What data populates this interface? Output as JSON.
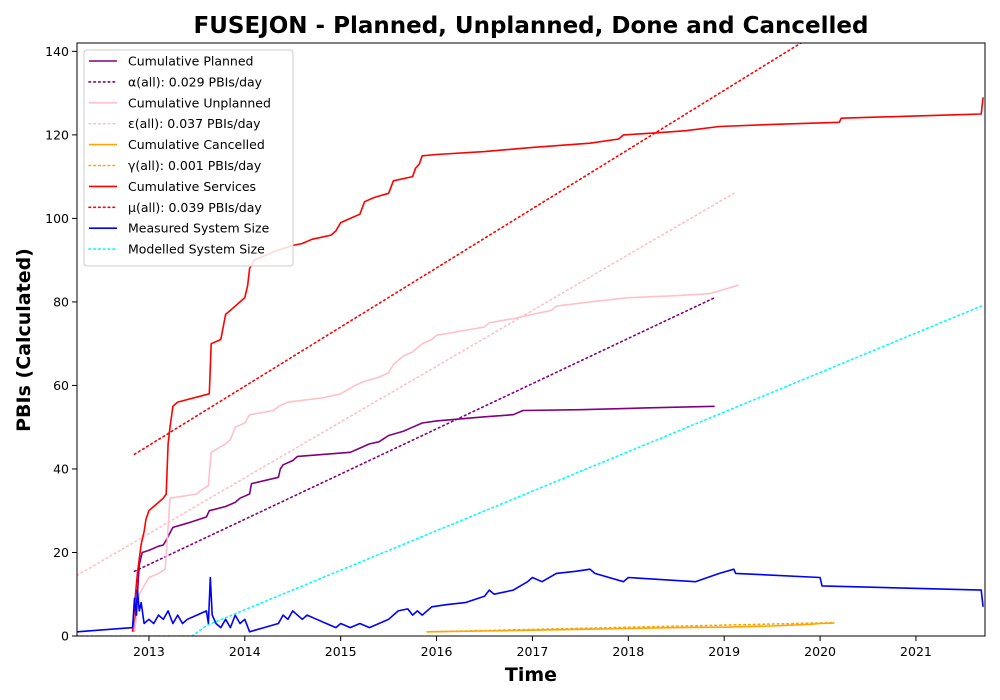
{
  "chart_data": {
    "type": "line",
    "title": "FUSEJON - Planned, Unplanned, Done  and Cancelled",
    "xlabel": "Time",
    "ylabel": "PBIs (Calculated)",
    "xlim": [
      2012.25,
      2021.72
    ],
    "ylim": [
      0,
      142
    ],
    "x_ticks": [
      2013,
      2014,
      2015,
      2016,
      2017,
      2018,
      2019,
      2020,
      2021
    ],
    "x_tick_labels": [
      "2013",
      "2014",
      "2015",
      "2016",
      "2017",
      "2018",
      "2019",
      "2020",
      "2021"
    ],
    "y_ticks": [
      0,
      20,
      40,
      60,
      80,
      100,
      120,
      140
    ],
    "y_tick_labels": [
      "0",
      "20",
      "40",
      "60",
      "80",
      "100",
      "120",
      "140"
    ],
    "legend_position": "top-left",
    "grid": false,
    "series": [
      {
        "name": "Cumulative Planned",
        "color": "#800080",
        "style": "solid",
        "points": [
          [
            2012.85,
            1
          ],
          [
            2012.88,
            10
          ],
          [
            2012.9,
            17
          ],
          [
            2012.93,
            20
          ],
          [
            2013.0,
            20.5
          ],
          [
            2013.1,
            21.5
          ],
          [
            2013.15,
            21.8
          ],
          [
            2013.18,
            23
          ],
          [
            2013.25,
            26
          ],
          [
            2013.4,
            27
          ],
          [
            2013.6,
            28.5
          ],
          [
            2013.63,
            30
          ],
          [
            2013.8,
            31
          ],
          [
            2013.9,
            32
          ],
          [
            2013.95,
            33
          ],
          [
            2014.05,
            34
          ],
          [
            2014.07,
            36.5
          ],
          [
            2014.35,
            38
          ],
          [
            2014.37,
            40
          ],
          [
            2014.4,
            41
          ],
          [
            2014.5,
            42
          ],
          [
            2014.55,
            43
          ],
          [
            2015.1,
            44
          ],
          [
            2015.2,
            45
          ],
          [
            2015.3,
            46
          ],
          [
            2015.4,
            46.5
          ],
          [
            2015.5,
            48
          ],
          [
            2015.65,
            49
          ],
          [
            2015.75,
            50
          ],
          [
            2015.85,
            51
          ],
          [
            2016.0,
            51.5
          ],
          [
            2016.5,
            52.5
          ],
          [
            2016.8,
            53
          ],
          [
            2016.9,
            54
          ],
          [
            2017.5,
            54.2
          ],
          [
            2018.0,
            54.5
          ],
          [
            2018.5,
            54.8
          ],
          [
            2018.9,
            55
          ]
        ]
      },
      {
        "name": "α(all): 0.029 PBIs/day",
        "color": "#800080",
        "style": "dotted",
        "points": [
          [
            2012.85,
            15.5
          ],
          [
            2018.9,
            81
          ]
        ]
      },
      {
        "name": "Cumulative Unplanned",
        "color": "#ffc0cb",
        "style": "solid",
        "points": [
          [
            2012.85,
            1
          ],
          [
            2012.9,
            10
          ],
          [
            2013.0,
            14
          ],
          [
            2013.1,
            15
          ],
          [
            2013.17,
            16
          ],
          [
            2013.2,
            26
          ],
          [
            2013.22,
            33
          ],
          [
            2013.5,
            34
          ],
          [
            2013.55,
            35
          ],
          [
            2013.62,
            36
          ],
          [
            2013.65,
            44
          ],
          [
            2013.8,
            46
          ],
          [
            2013.85,
            47
          ],
          [
            2013.9,
            50
          ],
          [
            2014.0,
            51
          ],
          [
            2014.05,
            53
          ],
          [
            2014.3,
            54
          ],
          [
            2014.35,
            55
          ],
          [
            2014.45,
            56
          ],
          [
            2014.8,
            57
          ],
          [
            2015.0,
            58
          ],
          [
            2015.15,
            60
          ],
          [
            2015.25,
            61
          ],
          [
            2015.4,
            62
          ],
          [
            2015.5,
            63
          ],
          [
            2015.55,
            65
          ],
          [
            2015.65,
            67
          ],
          [
            2015.75,
            68
          ],
          [
            2015.85,
            70
          ],
          [
            2015.95,
            71
          ],
          [
            2016.0,
            72
          ],
          [
            2016.5,
            74
          ],
          [
            2016.55,
            75
          ],
          [
            2016.8,
            76
          ],
          [
            2017.0,
            77
          ],
          [
            2017.2,
            78
          ],
          [
            2017.25,
            79
          ],
          [
            2017.6,
            80
          ],
          [
            2018.0,
            81
          ],
          [
            2018.5,
            81.5
          ],
          [
            2018.85,
            82
          ],
          [
            2019.0,
            83
          ],
          [
            2019.15,
            84
          ]
        ]
      },
      {
        "name": "ε(all): 0.037 PBIs/day",
        "color": "#ffc0cb",
        "style": "dotted",
        "points": [
          [
            2012.25,
            14.5
          ],
          [
            2019.1,
            106
          ]
        ]
      },
      {
        "name": "Cumulative Cancelled",
        "color": "#ffa500",
        "style": "solid",
        "points": [
          [
            2015.9,
            1
          ],
          [
            2016.5,
            1.2
          ],
          [
            2017.0,
            1.4
          ],
          [
            2017.5,
            1.6
          ],
          [
            2018.0,
            1.8
          ],
          [
            2018.5,
            2.0
          ],
          [
            2019.0,
            2.1
          ],
          [
            2019.5,
            2.4
          ],
          [
            2019.9,
            2.8
          ],
          [
            2020.0,
            3.0
          ],
          [
            2020.15,
            3.1
          ]
        ]
      },
      {
        "name": "γ(all): 0.001 PBIs/day",
        "color": "#ffa500",
        "style": "dotted",
        "points": [
          [
            2015.9,
            1.0
          ],
          [
            2020.15,
            3.2
          ]
        ]
      },
      {
        "name": "Cumulative Services",
        "color": "#ff0000",
        "style": "solid",
        "points": [
          [
            2012.83,
            1
          ],
          [
            2012.86,
            10
          ],
          [
            2012.88,
            15
          ],
          [
            2012.92,
            22
          ],
          [
            2012.95,
            25
          ],
          [
            2012.97,
            28
          ],
          [
            2013.0,
            30
          ],
          [
            2013.05,
            31
          ],
          [
            2013.1,
            32
          ],
          [
            2013.15,
            33
          ],
          [
            2013.18,
            34
          ],
          [
            2013.2,
            46
          ],
          [
            2013.22,
            50
          ],
          [
            2013.25,
            55
          ],
          [
            2013.3,
            56
          ],
          [
            2013.63,
            58
          ],
          [
            2013.65,
            70
          ],
          [
            2013.75,
            71
          ],
          [
            2013.8,
            77
          ],
          [
            2013.85,
            78
          ],
          [
            2013.9,
            79
          ],
          [
            2013.95,
            80
          ],
          [
            2014.0,
            81
          ],
          [
            2014.03,
            84
          ],
          [
            2014.05,
            88
          ],
          [
            2014.1,
            90
          ],
          [
            2014.2,
            91
          ],
          [
            2014.3,
            92
          ],
          [
            2014.5,
            93.5
          ],
          [
            2014.6,
            94
          ],
          [
            2014.7,
            95
          ],
          [
            2014.9,
            96
          ],
          [
            2014.95,
            97
          ],
          [
            2015.0,
            99
          ],
          [
            2015.1,
            100
          ],
          [
            2015.2,
            101
          ],
          [
            2015.25,
            104
          ],
          [
            2015.35,
            105
          ],
          [
            2015.5,
            106
          ],
          [
            2015.55,
            109
          ],
          [
            2015.75,
            110
          ],
          [
            2015.78,
            112
          ],
          [
            2015.82,
            113
          ],
          [
            2015.85,
            115
          ],
          [
            2016.0,
            115.3
          ],
          [
            2016.5,
            116
          ],
          [
            2017.0,
            117
          ],
          [
            2017.6,
            118
          ],
          [
            2017.9,
            119
          ],
          [
            2017.95,
            120
          ],
          [
            2018.3,
            120.5
          ],
          [
            2018.6,
            121
          ],
          [
            2018.95,
            122
          ],
          [
            2019.5,
            122.5
          ],
          [
            2020.2,
            123
          ],
          [
            2020.22,
            124
          ],
          [
            2021.4,
            124.8
          ],
          [
            2021.68,
            125
          ],
          [
            2021.7,
            129
          ]
        ]
      },
      {
        "name": "μ(all): 0.039 PBIs/day",
        "color": "#ff0000",
        "style": "dotted",
        "points": [
          [
            2012.85,
            43.5
          ],
          [
            2019.8,
            142
          ]
        ]
      },
      {
        "name": "Measured System Size",
        "color": "#0000ff",
        "style": "solid",
        "points": [
          [
            2012.25,
            1
          ],
          [
            2012.83,
            2
          ],
          [
            2012.85,
            9
          ],
          [
            2012.87,
            5
          ],
          [
            2012.88,
            11
          ],
          [
            2012.9,
            6
          ],
          [
            2012.92,
            8
          ],
          [
            2012.95,
            3
          ],
          [
            2013.0,
            4
          ],
          [
            2013.05,
            3
          ],
          [
            2013.1,
            5
          ],
          [
            2013.15,
            4
          ],
          [
            2013.2,
            6
          ],
          [
            2013.25,
            3
          ],
          [
            2013.3,
            5
          ],
          [
            2013.35,
            3
          ],
          [
            2013.4,
            4
          ],
          [
            2013.5,
            5
          ],
          [
            2013.6,
            6
          ],
          [
            2013.62,
            3
          ],
          [
            2013.64,
            14
          ],
          [
            2013.66,
            5
          ],
          [
            2013.7,
            3
          ],
          [
            2013.75,
            2
          ],
          [
            2013.8,
            4
          ],
          [
            2013.85,
            2
          ],
          [
            2013.9,
            5
          ],
          [
            2013.95,
            3
          ],
          [
            2014.0,
            4
          ],
          [
            2014.05,
            1
          ],
          [
            2014.2,
            2
          ],
          [
            2014.35,
            3
          ],
          [
            2014.4,
            5
          ],
          [
            2014.45,
            4
          ],
          [
            2014.5,
            6
          ],
          [
            2014.6,
            4
          ],
          [
            2014.65,
            5
          ],
          [
            2014.75,
            4
          ],
          [
            2014.85,
            3
          ],
          [
            2014.95,
            2
          ],
          [
            2015.0,
            3
          ],
          [
            2015.1,
            2
          ],
          [
            2015.2,
            3
          ],
          [
            2015.3,
            2
          ],
          [
            2015.4,
            3
          ],
          [
            2015.5,
            4
          ],
          [
            2015.6,
            6
          ],
          [
            2015.7,
            6.5
          ],
          [
            2015.75,
            5
          ],
          [
            2015.8,
            6
          ],
          [
            2015.85,
            5
          ],
          [
            2015.95,
            7
          ],
          [
            2016.1,
            7.5
          ],
          [
            2016.3,
            8
          ],
          [
            2016.5,
            9.5
          ],
          [
            2016.55,
            11
          ],
          [
            2016.6,
            10
          ],
          [
            2016.8,
            11
          ],
          [
            2016.95,
            13
          ],
          [
            2017.0,
            14
          ],
          [
            2017.1,
            13
          ],
          [
            2017.25,
            15
          ],
          [
            2017.45,
            15.5
          ],
          [
            2017.6,
            16
          ],
          [
            2017.65,
            15
          ],
          [
            2017.95,
            13
          ],
          [
            2018.0,
            14
          ],
          [
            2018.7,
            13
          ],
          [
            2018.95,
            15
          ],
          [
            2019.1,
            16
          ],
          [
            2019.12,
            15
          ],
          [
            2020.0,
            14
          ],
          [
            2020.02,
            12
          ],
          [
            2021.68,
            11
          ],
          [
            2021.7,
            7
          ]
        ]
      },
      {
        "name": "Modelled System Size",
        "color": "#00ffff",
        "style": "dotted",
        "points": [
          [
            2012.25,
            0
          ],
          [
            2013.45,
            0
          ],
          [
            2013.6,
            2.5
          ],
          [
            2021.68,
            79
          ]
        ]
      }
    ]
  }
}
